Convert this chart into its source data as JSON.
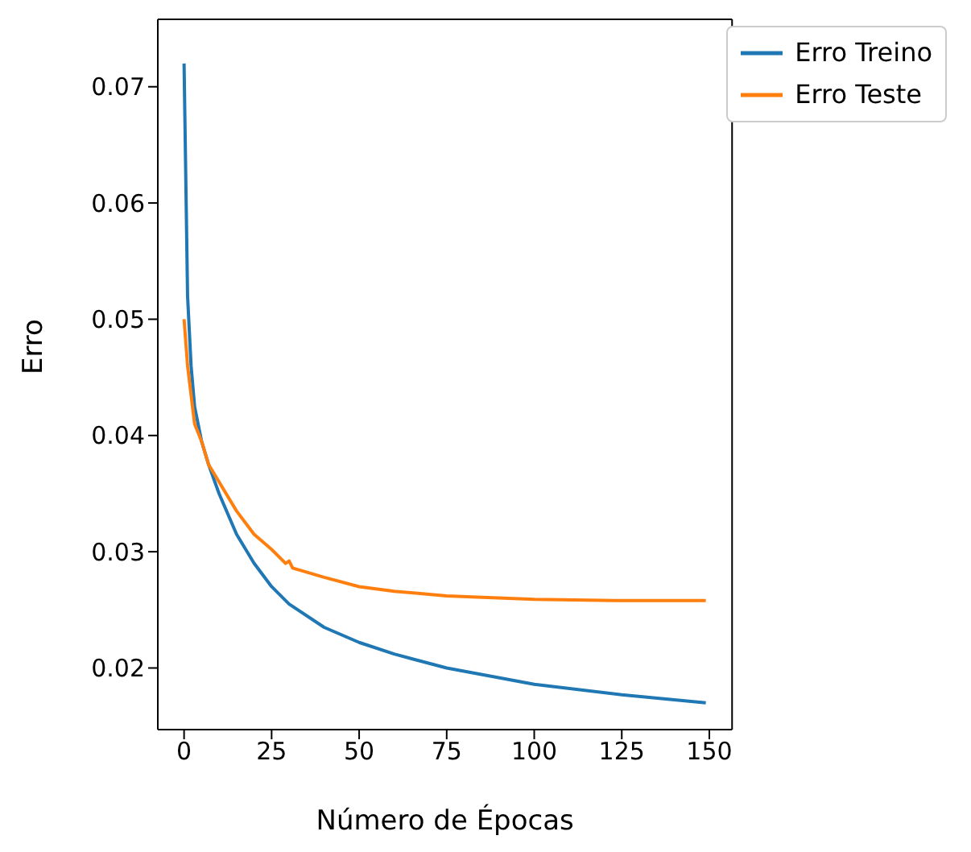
{
  "chart_data": {
    "type": "line",
    "xlabel": "Número de Épocas",
    "ylabel": "Erro",
    "xlim": [
      -7.5,
      156.5
    ],
    "ylim": [
      0.0147,
      0.0758
    ],
    "xticks": [
      0,
      25,
      50,
      75,
      100,
      125,
      150
    ],
    "yticks": [
      0.02,
      0.03,
      0.04,
      0.05,
      0.06,
      0.07
    ],
    "grid": false,
    "legend": "top right",
    "marker": "none",
    "line_style": "solid",
    "series": [
      {
        "name": "Erro Treino",
        "color": "#1f77b4",
        "x": [
          0,
          1,
          2,
          3,
          5,
          7,
          10,
          15,
          20,
          25,
          30,
          40,
          50,
          60,
          75,
          100,
          125,
          149
        ],
        "values": [
          0.072,
          0.052,
          0.046,
          0.0425,
          0.0395,
          0.0375,
          0.035,
          0.0315,
          0.029,
          0.027,
          0.0255,
          0.0235,
          0.0222,
          0.0212,
          0.02,
          0.0186,
          0.0177,
          0.017
        ]
      },
      {
        "name": "Erro Teste",
        "color": "#ff7f0e",
        "x": [
          0,
          1,
          2,
          3,
          5,
          7,
          8,
          10,
          15,
          20,
          25,
          29,
          30,
          31,
          40,
          50,
          60,
          75,
          100,
          125,
          149
        ],
        "values": [
          0.05,
          0.046,
          0.0435,
          0.041,
          0.0395,
          0.0375,
          0.037,
          0.036,
          0.0335,
          0.0315,
          0.0302,
          0.029,
          0.0292,
          0.0286,
          0.0278,
          0.027,
          0.0266,
          0.0262,
          0.0259,
          0.0258,
          0.0258
        ]
      }
    ]
  }
}
